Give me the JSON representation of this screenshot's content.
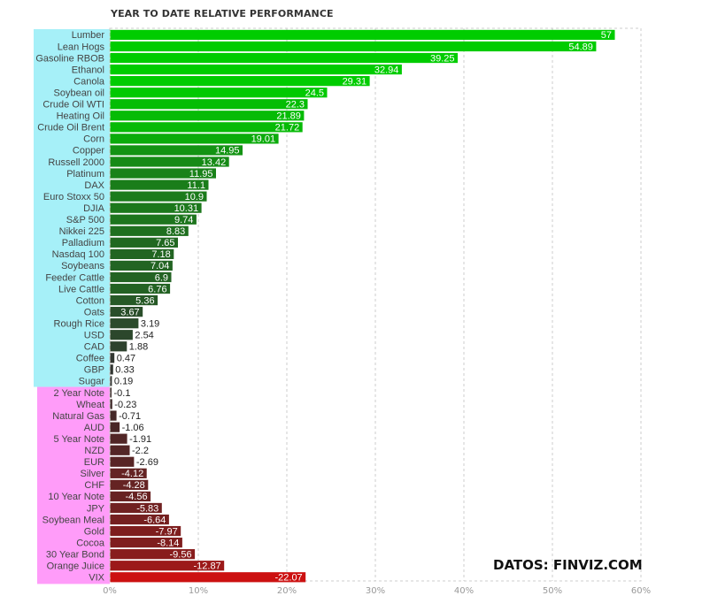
{
  "chart_data": {
    "type": "bar",
    "orientation": "horizontal",
    "title": "YEAR TO DATE RELATIVE PERFORMANCE",
    "categories": [
      "Lumber",
      "Lean Hogs",
      "Gasoline RBOB",
      "Ethanol",
      "Canola",
      "Soybean oil",
      "Crude Oil WTI",
      "Heating Oil",
      "Crude Oil Brent",
      "Corn",
      "Copper",
      "Russell 2000",
      "Platinum",
      "DAX",
      "Euro Stoxx 50",
      "DJIA",
      "S&P 500",
      "Nikkei 225",
      "Palladium",
      "Nasdaq 100",
      "Soybeans",
      "Feeder Cattle",
      "Live Cattle",
      "Cotton",
      "Oats",
      "Rough Rice",
      "USD",
      "CAD",
      "Coffee",
      "GBP",
      "Sugar",
      "2 Year Note",
      "Wheat",
      "Natural Gas",
      "AUD",
      "5 Year Note",
      "NZD",
      "EUR",
      "Silver",
      "CHF",
      "10 Year Note",
      "JPY",
      "Soybean Meal",
      "Gold",
      "Cocoa",
      "30 Year Bond",
      "Orange Juice",
      "VIX"
    ],
    "values": [
      57,
      54.89,
      39.25,
      32.94,
      29.31,
      24.5,
      22.3,
      21.89,
      21.72,
      19.01,
      14.95,
      13.42,
      11.95,
      11.1,
      10.9,
      10.31,
      9.74,
      8.83,
      7.65,
      7.18,
      7.04,
      6.9,
      6.76,
      5.36,
      3.67,
      3.19,
      2.54,
      1.88,
      0.47,
      0.33,
      0.19,
      -0.1,
      -0.23,
      -0.71,
      -1.06,
      -1.91,
      -2.2,
      -2.69,
      -4.12,
      -4.28,
      -4.56,
      -5.83,
      -6.64,
      -7.97,
      -8.14,
      -9.56,
      -12.87,
      -22.07
    ],
    "value_labels": [
      "57",
      "54.89",
      "39.25",
      "32.94",
      "29.31",
      "24.5",
      "22.3",
      "21.89",
      "21.72",
      "19.01",
      "14.95",
      "13.42",
      "11.95",
      "11.1",
      "10.9",
      "10.31",
      "9.74",
      "8.83",
      "7.65",
      "7.18",
      "7.04",
      "6.9",
      "6.76",
      "5.36",
      "3.67",
      "3.19",
      "2.54",
      "1.88",
      "0.47",
      "0.33",
      "0.19",
      "-0.1",
      "-0.23",
      "-0.71",
      "-1.06",
      "-1.91",
      "-2.2",
      "-2.69",
      "-4.12",
      "-4.28",
      "-4.56",
      "-5.83",
      "-6.64",
      "-7.97",
      "-8.14",
      "-9.56",
      "-12.87",
      "-22.07"
    ],
    "x_ticks": [
      "0%",
      "10%",
      "20%",
      "30%",
      "40%",
      "50%",
      "60%"
    ],
    "x_tick_values": [
      0,
      10,
      20,
      30,
      40,
      50,
      60
    ],
    "xlim": [
      0,
      60
    ],
    "grid": true,
    "bar_length_is_absolute_value": true,
    "colors": {
      "positive_label_bg": "#a6f0f8",
      "negative_label_bg": "#ff9cf9",
      "bar_strong_positive": "#00cc00",
      "bar_weak_positive": "#333333",
      "bar_weak_negative": "#3a2a2a",
      "bar_strong_negative": "#cc1111",
      "grid": "#cccccc",
      "tick_text": "#999999"
    }
  },
  "watermark": "DATOS: FINVIZ.COM"
}
